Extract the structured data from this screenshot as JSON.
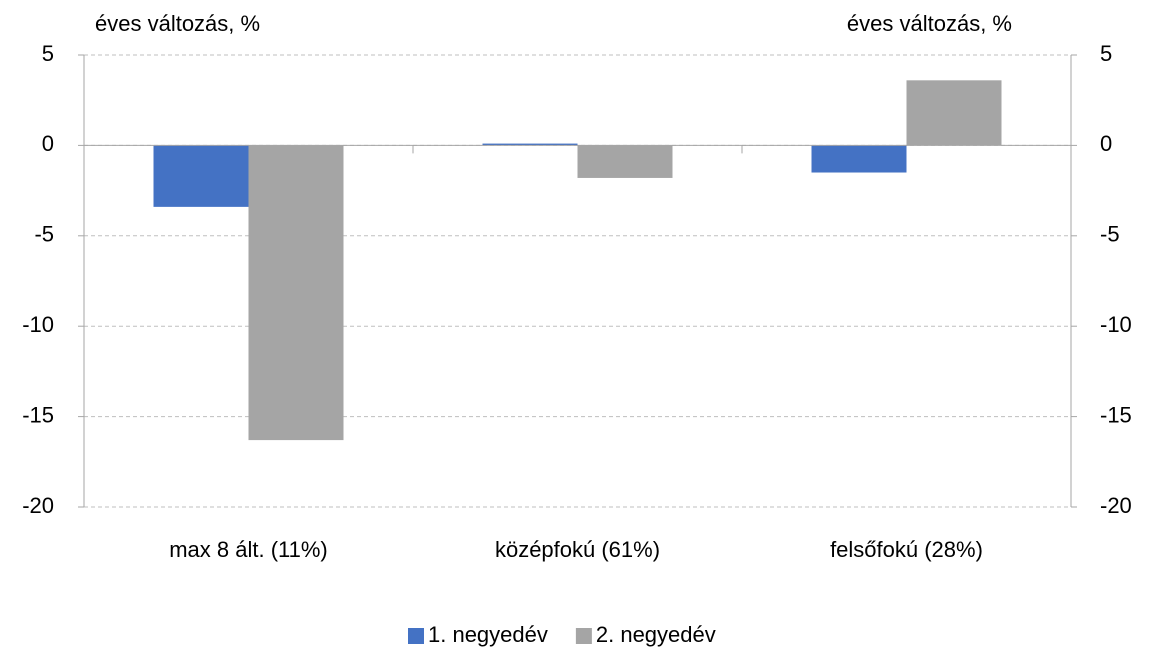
{
  "chart_data": {
    "type": "bar",
    "y_axis_label": "éves változás, %",
    "y2_axis_label": "éves változás, %",
    "categories": [
      "max 8 ált. (11%)",
      "középfokú (61%)",
      "felsőfokú (28%)"
    ],
    "series": [
      {
        "name": "1. negyedév",
        "color": "#4472c4",
        "values": [
          -3.4,
          0.1,
          -1.5
        ]
      },
      {
        "name": "2. negyedév",
        "color": "#a5a5a5",
        "values": [
          -16.3,
          -1.8,
          3.6
        ]
      }
    ],
    "ylim": [
      -20,
      5
    ],
    "yticks": [
      -20,
      -15,
      -10,
      -5,
      0,
      5
    ],
    "y2lim": [
      -20,
      5
    ],
    "y2ticks": [
      -20,
      -15,
      -10,
      -5,
      0,
      5
    ],
    "grid": true,
    "legend": "bottom"
  }
}
